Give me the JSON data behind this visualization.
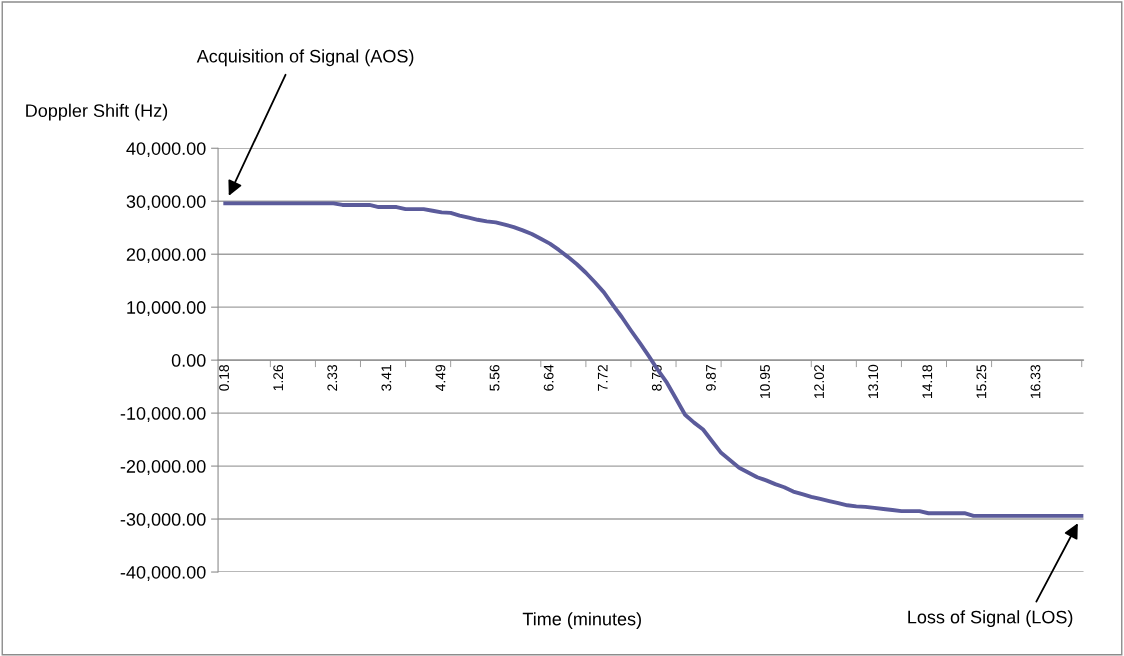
{
  "chart_data": {
    "type": "line",
    "ylabel": "Doppler Shift (Hz)",
    "xlabel": "Time (minutes)",
    "categories": [
      "0.18",
      null,
      null,
      null,
      null,
      null,
      "1.26",
      null,
      null,
      null,
      null,
      null,
      "2.33",
      null,
      null,
      null,
      null,
      null,
      "3.41",
      null,
      null,
      null,
      null,
      null,
      "4.49",
      null,
      null,
      null,
      null,
      null,
      "5.56",
      null,
      null,
      null,
      null,
      null,
      "6.64",
      null,
      null,
      null,
      null,
      null,
      "7.72",
      null,
      null,
      null,
      null,
      null,
      "8.79",
      null,
      null,
      null,
      null,
      null,
      "9.87",
      null,
      null,
      null,
      null,
      null,
      "10.95",
      null,
      null,
      null,
      null,
      null,
      "12.02",
      null,
      null,
      null,
      null,
      null,
      "13.10",
      null,
      null,
      null,
      null,
      null,
      "14.18",
      null,
      null,
      null,
      null,
      null,
      "15.25",
      null,
      null,
      null,
      null,
      null,
      "16.33",
      null,
      null,
      null,
      null,
      null
    ],
    "series": [
      {
        "color": "#5b5b9b",
        "values": [
          29600,
          29600,
          29600,
          29600,
          29600,
          29600,
          29600,
          29600,
          29600,
          29600,
          29600,
          29600,
          29600,
          29300,
          29300,
          29300,
          29300,
          28900,
          28900,
          28900,
          28500,
          28500,
          28500,
          28200,
          27900,
          27800,
          27300,
          26900,
          26500,
          26200,
          26000,
          25600,
          25100,
          24500,
          23800,
          22900,
          22000,
          20800,
          19500,
          18100,
          16500,
          14700,
          12800,
          10400,
          8100,
          5600,
          3200,
          700,
          -1900,
          -4300,
          -7300,
          -10300,
          -11800,
          -13100,
          -15300,
          -17500,
          -18900,
          -20300,
          -21200,
          -22100,
          -22700,
          -23400,
          -24000,
          -24800,
          -25300,
          -25800,
          -26200,
          -26600,
          -27000,
          -27400,
          -27600,
          -27700,
          -27900,
          -28100,
          -28300,
          -28500,
          -28500,
          -28500,
          -28900,
          -28900,
          -28900,
          -28900,
          -28900,
          -29400,
          -29400,
          -29400,
          -29400,
          -29400,
          -29400,
          -29400,
          -29400,
          -29400,
          -29400,
          -29400,
          -29400,
          -29400
        ]
      }
    ],
    "ylim": [
      -40000,
      40000
    ],
    "yticks": [
      {
        "value": -40000,
        "label": "-40,000.00"
      },
      {
        "value": -30000,
        "label": "-30,000.00"
      },
      {
        "value": -20000,
        "label": "-20,000.00"
      },
      {
        "value": -10000,
        "label": "-10,000.00"
      },
      {
        "value": 0,
        "label": "0.00"
      },
      {
        "value": 10000,
        "label": "10,000.00"
      },
      {
        "value": 20000,
        "label": "20,000.00"
      },
      {
        "value": 30000,
        "label": "30,000.00"
      },
      {
        "value": 40000,
        "label": "40,000.00"
      }
    ],
    "grid": "y",
    "legend": false,
    "marker": "none",
    "line_style": "solid",
    "annotations": [
      "Acquisition of Signal (AOS)",
      "Loss of Signal (LOS)"
    ]
  }
}
